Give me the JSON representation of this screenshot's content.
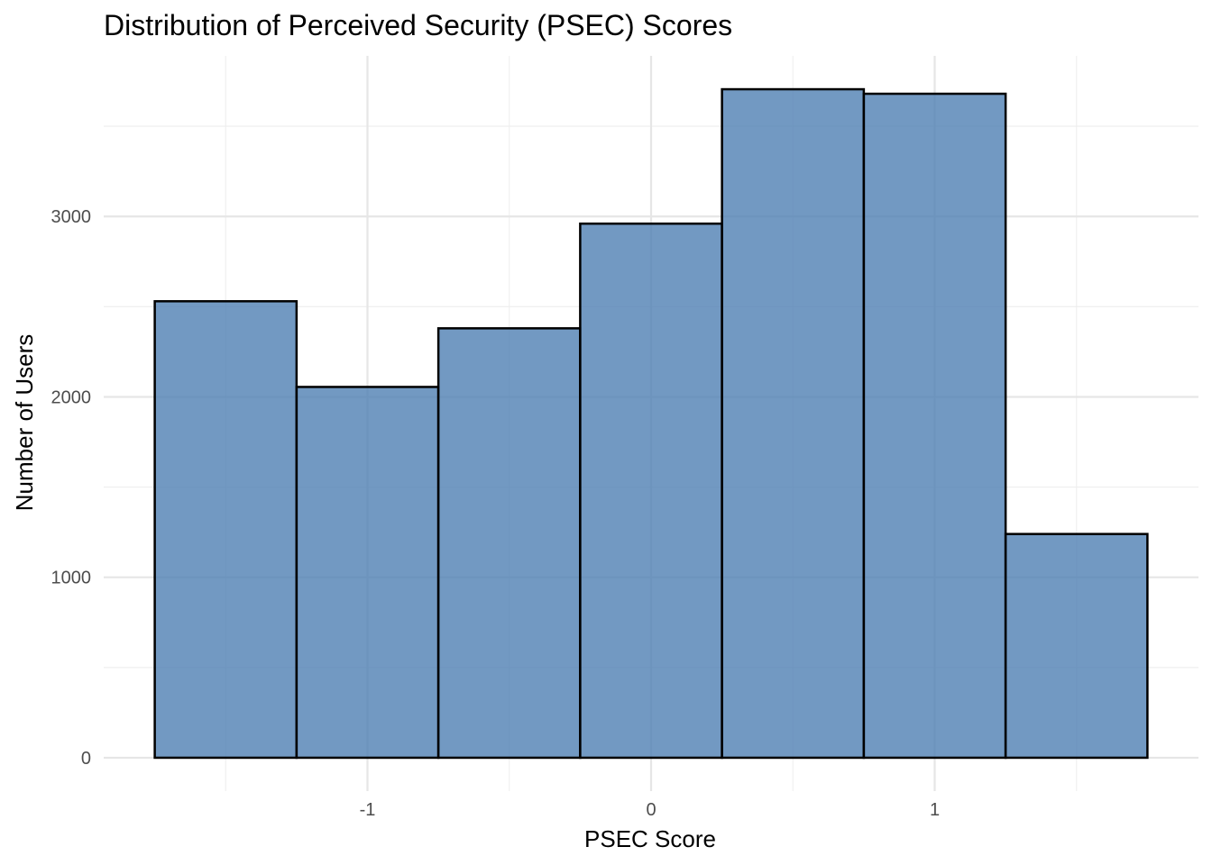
{
  "chart_data": {
    "type": "bar",
    "title": "Distribution of Perceived Security (PSEC) Scores",
    "xlabel": "PSEC Score",
    "ylabel": "Number of Users",
    "bin_width": 0.5,
    "bins": [
      {
        "x0": -1.75,
        "x1": -1.25,
        "value": 2530
      },
      {
        "x0": -1.25,
        "x1": -0.75,
        "value": 2055
      },
      {
        "x0": -0.75,
        "x1": -0.25,
        "value": 2380
      },
      {
        "x0": -0.25,
        "x1": 0.25,
        "value": 2960
      },
      {
        "x0": 0.25,
        "x1": 0.75,
        "value": 3705
      },
      {
        "x0": 0.75,
        "x1": 1.25,
        "value": 3680
      },
      {
        "x0": 1.25,
        "x1": 1.75,
        "value": 1240
      }
    ],
    "xlim": [
      -1.93,
      1.93
    ],
    "ylim": [
      -185,
      3890
    ],
    "x_ticks": [
      -1,
      0,
      1
    ],
    "x_tick_labels": [
      "-1",
      "0",
      "1"
    ],
    "x_minor_ticks": [
      -1.5,
      -0.5,
      0.5,
      1.5
    ],
    "y_ticks": [
      0,
      1000,
      2000,
      3000
    ],
    "y_tick_labels": [
      "0",
      "1000",
      "2000",
      "3000"
    ],
    "y_minor_ticks": [
      500,
      1500,
      2500,
      3500
    ],
    "grid": true,
    "legend": "none",
    "colors": {
      "fill": "#4f7fb3",
      "fill_opacity": 0.8,
      "outline": "#000000"
    }
  }
}
